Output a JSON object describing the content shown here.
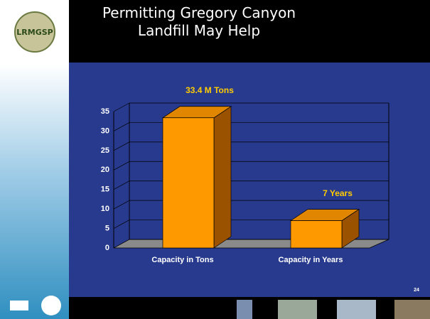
{
  "logo_text": "LRMGSP",
  "page_number": "24",
  "chart_data": {
    "type": "bar3d",
    "title": "Permitting Gregory Canyon Landfill May Help",
    "categories": [
      "Capacity in Tons",
      "Capacity in Years"
    ],
    "values": [
      33.4,
      7
    ],
    "value_labels": [
      "33.4 M Tons",
      "7 Years"
    ],
    "color": "#ff9900",
    "ylim": [
      0,
      35
    ],
    "yticks": [
      0,
      5,
      10,
      15,
      20,
      25,
      30,
      35
    ],
    "grid": true
  }
}
